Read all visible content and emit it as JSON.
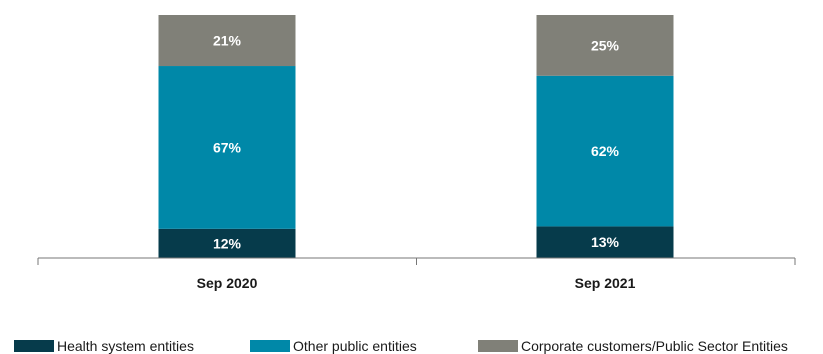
{
  "chart_data": {
    "type": "bar",
    "stacked": true,
    "categories": [
      "Sep 2020",
      "Sep 2021"
    ],
    "series": [
      {
        "name": "Health system entities",
        "values": [
          12,
          13
        ],
        "labels": [
          "12%",
          "13%"
        ],
        "color": "#063b4b"
      },
      {
        "name": "Other public entities",
        "values": [
          67,
          62
        ],
        "labels": [
          "67%",
          "62%"
        ],
        "color": "#0088a8"
      },
      {
        "name": "Corporate customers/Public Sector Entities",
        "values": [
          21,
          25
        ],
        "labels": [
          "21%",
          "25%"
        ],
        "color": "#808078"
      }
    ],
    "ylim": [
      0,
      100
    ],
    "grid": false,
    "legend_position": "bottom"
  }
}
